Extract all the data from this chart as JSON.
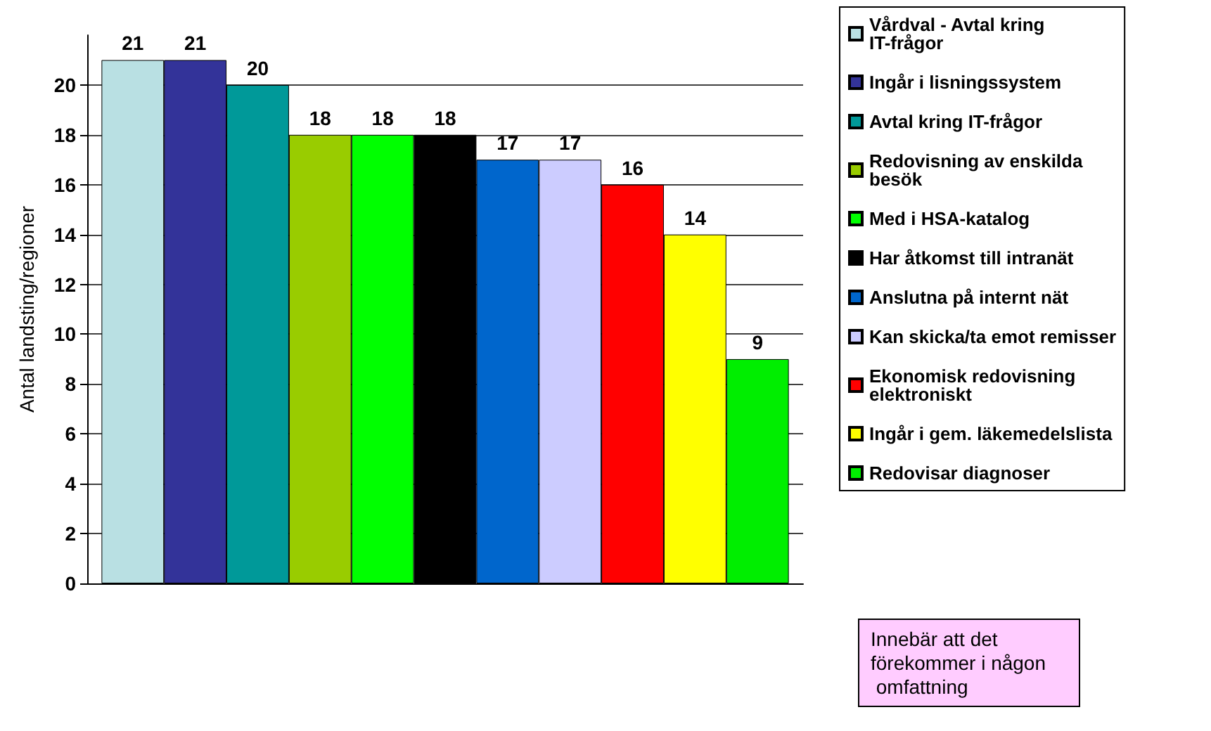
{
  "chart_data": {
    "type": "bar",
    "ylabel": "Antal landsting/regioner",
    "categories": [
      null
    ],
    "series": [
      {
        "name": "Vårdval - Avtal kring IT-frågor",
        "color": "#b9e0e3",
        "values": [
          21
        ]
      },
      {
        "name": "Ingår i lisningssystem",
        "color": "#333399",
        "values": [
          21
        ]
      },
      {
        "name": "Avtal kring IT-frågor",
        "color": "#009999",
        "values": [
          20
        ]
      },
      {
        "name": "Redovisning av enskilda besök",
        "color": "#99cc00",
        "values": [
          18
        ]
      },
      {
        "name": "Med i HSA-katalog",
        "color": "#00ff00",
        "values": [
          18
        ]
      },
      {
        "name": "Har åtkomst till intranät",
        "color": "#000000",
        "values": [
          18
        ]
      },
      {
        "name": "Anslutna på internt nät",
        "color": "#0066cc",
        "values": [
          17
        ]
      },
      {
        "name": "Kan skicka/ta emot remisser",
        "color": "#ccccff",
        "values": [
          17
        ]
      },
      {
        "name": "Ekonomisk redovisning elektroniskt",
        "color": "#ff0000",
        "values": [
          16
        ]
      },
      {
        "name": "Ingår i gem. läkemedelslista",
        "color": "#ffff00",
        "values": [
          14
        ]
      },
      {
        "name": "Redovisar diagnoser",
        "color": "#00ee00",
        "values": [
          9
        ]
      }
    ],
    "ylim": [
      0,
      22
    ],
    "yticks": [
      0,
      2,
      4,
      6,
      8,
      10,
      12,
      14,
      16,
      18,
      20
    ],
    "grid": "y",
    "legend": "right",
    "data_labels": true,
    "annotations": [
      "Innebär att det förekommer i någon omfattning"
    ]
  }
}
